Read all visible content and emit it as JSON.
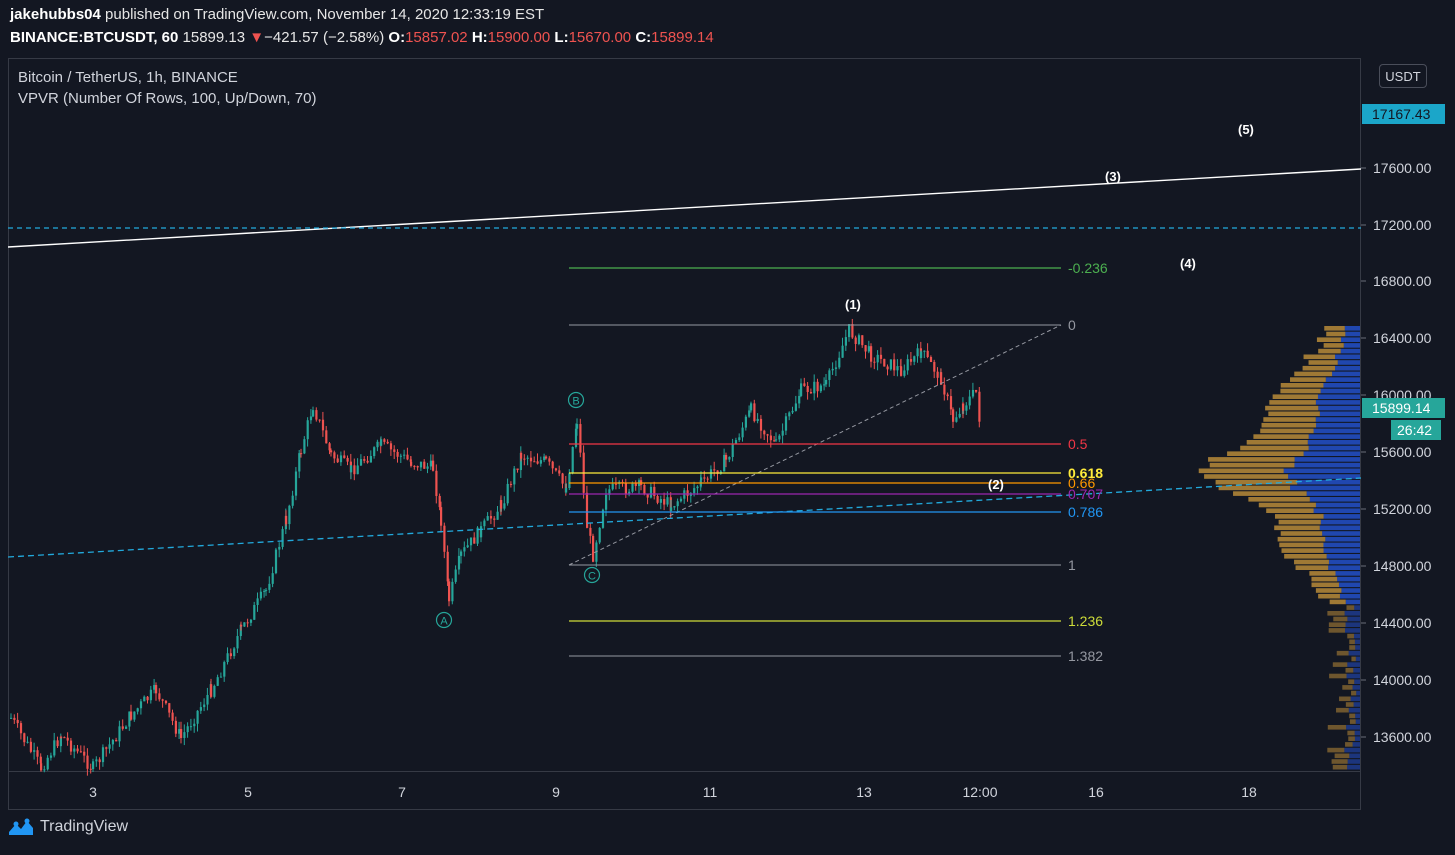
{
  "header": {
    "author": "jakehubbs04",
    "published_text": "published on TradingView.com, November 14, 2020 12:33:19 EST",
    "symbol": "BINANCE:BTCUSDT, 60",
    "last": "15899.13",
    "change_arrow": "▼",
    "change": "−421.57 (−2.58%)",
    "o_label": "O:",
    "o_value": "15857.02",
    "h_label": "H:",
    "h_value": "15900.00",
    "l_label": "L:",
    "l_value": "15670.00",
    "c_label": "C:",
    "c_value": "15899.14"
  },
  "legend": {
    "title": "Bitcoin / TetherUS, 1h, BINANCE",
    "indicator": "VPVR (Number Of Rows, 100, Up/Down, 70)"
  },
  "currency_button": "USDT",
  "price_labels": {
    "dashed_level": "17167.43",
    "last_price": "15899.14",
    "countdown": "26:42"
  },
  "price_ticks": [
    "17600.00",
    "17200.00",
    "16800.00",
    "16400.00",
    "16000.00",
    "15600.00",
    "15200.00",
    "14800.00",
    "14400.00",
    "14000.00",
    "13600.00"
  ],
  "time_ticks": [
    "3",
    "5",
    "7",
    "9",
    "11",
    "13",
    "12:00",
    "16",
    "18"
  ],
  "fib_levels": [
    {
      "label": "-0.236",
      "color": "#4caf50"
    },
    {
      "label": "0",
      "color": "#9598a1"
    },
    {
      "label": "0.5",
      "color": "#f23645"
    },
    {
      "label": "0.618",
      "color": "#ffeb3b"
    },
    {
      "label": "0.66",
      "color": "#ff9800"
    },
    {
      "label": "0.707",
      "color": "#9c27b0"
    },
    {
      "label": "0.786",
      "color": "#2196f3"
    },
    {
      "label": "1",
      "color": "#9598a1"
    },
    {
      "label": "1.236",
      "color": "#cddc39"
    },
    {
      "label": "1.382",
      "color": "#9598a1"
    }
  ],
  "wave_labels": [
    "(1)",
    "(2)",
    "(3)",
    "(4)",
    "(5)"
  ],
  "abc_labels": [
    "A",
    "B",
    "C"
  ],
  "colors": {
    "background": "#131722",
    "up_candle": "#26a69a",
    "down_candle": "#ef5350",
    "vpvr_up": "#2962ff",
    "vpvr_down": "#f0b140",
    "dashed_line": "#22aadd",
    "trend_line": "#ffffff"
  },
  "footer": {
    "brand": "TradingView"
  }
}
